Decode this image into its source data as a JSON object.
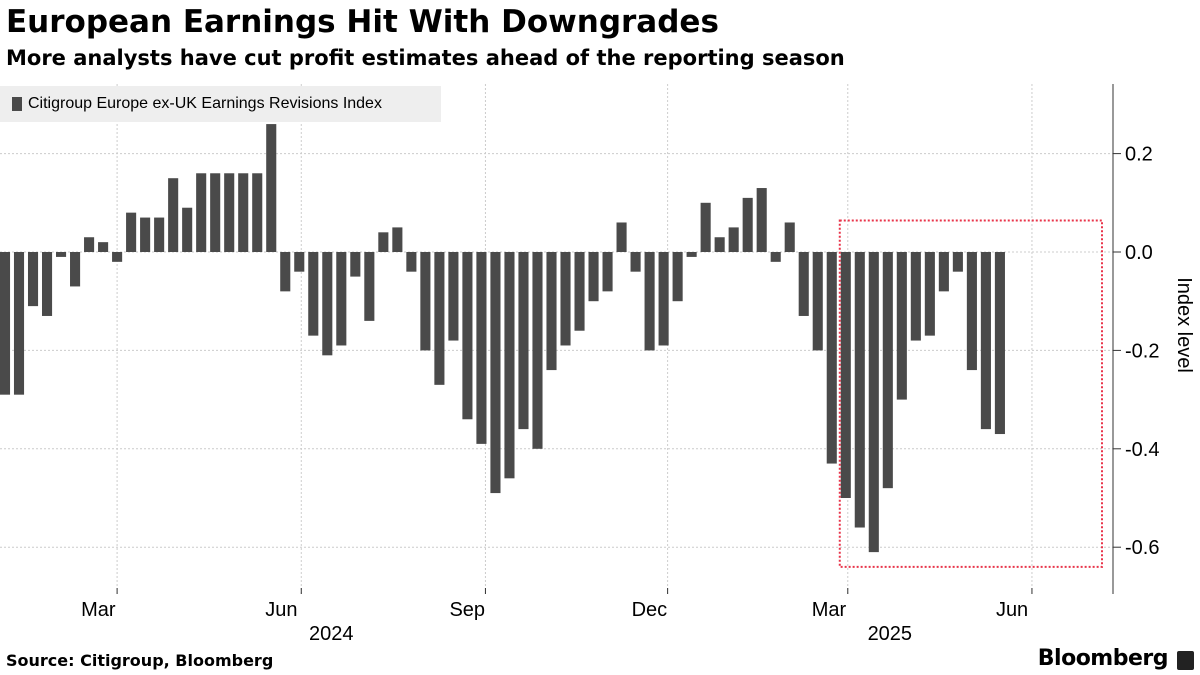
{
  "title": "European Earnings Hit With Downgrades",
  "subtitle": "More analysts have cut profit estimates ahead of the reporting season",
  "source": "Source: Citigroup, Bloomberg",
  "brand": "Bloomberg",
  "colors": {
    "bar": "#4a4a4a",
    "grid": "#cccccc",
    "highlight": "#e8344a",
    "legend_bg": "#eeeeee"
  },
  "chart_data": {
    "type": "bar",
    "title": "European Earnings Hit With Downgrades",
    "series_name": "Citigroup Europe ex-UK Earnings Revisions Index",
    "ylabel": "Index level",
    "ylim": [
      -0.69,
      0.335
    ],
    "yticks": [
      0.2,
      0.0,
      -0.2,
      -0.4,
      -0.6
    ],
    "ytick_labels": [
      "0.2",
      "0.0",
      "-0.2",
      "-0.4",
      "-0.6"
    ],
    "x_start": "2024-01-05",
    "x_end": "2025-06-30",
    "bar_interval_days": 7,
    "xticks": [
      {
        "date": "2024-03-01",
        "label": "Mar"
      },
      {
        "date": "2024-06-01",
        "label": "Jun"
      },
      {
        "date": "2024-09-01",
        "label": "Sep"
      },
      {
        "date": "2024-12-01",
        "label": "Dec"
      },
      {
        "date": "2025-03-01",
        "label": "Mar"
      },
      {
        "date": "2025-06-01",
        "label": "Jun"
      }
    ],
    "year_labels": [
      {
        "date": "2024-06-16",
        "label": "2024"
      },
      {
        "date": "2025-03-22",
        "label": "2025"
      }
    ],
    "values": [
      -0.29,
      -0.29,
      -0.11,
      -0.13,
      -0.01,
      -0.07,
      0.03,
      0.02,
      -0.02,
      0.08,
      0.07,
      0.07,
      0.15,
      0.09,
      0.16,
      0.16,
      0.16,
      0.16,
      0.16,
      0.26,
      -0.08,
      -0.04,
      -0.17,
      -0.21,
      -0.19,
      -0.05,
      -0.14,
      0.04,
      0.05,
      -0.04,
      -0.2,
      -0.27,
      -0.18,
      -0.34,
      -0.39,
      -0.49,
      -0.46,
      -0.36,
      -0.4,
      -0.24,
      -0.19,
      -0.16,
      -0.1,
      -0.08,
      0.06,
      -0.04,
      -0.2,
      -0.19,
      -0.1,
      -0.01,
      0.1,
      0.03,
      0.05,
      0.11,
      0.13,
      -0.02,
      0.06,
      -0.13,
      -0.2,
      -0.43,
      -0.5,
      -0.56,
      -0.61,
      -0.48,
      -0.3,
      -0.18,
      -0.17,
      -0.08,
      -0.04,
      -0.24,
      -0.36,
      -0.37
    ],
    "highlight": {
      "from_date": "2025-02-24",
      "to_date": "2025-06-30",
      "y_top": 0.06,
      "y_bottom": -0.64
    },
    "grid": true
  }
}
